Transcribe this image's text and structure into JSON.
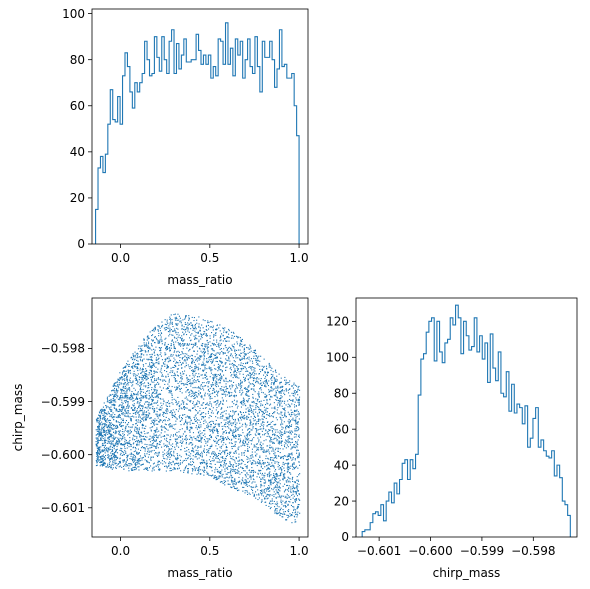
{
  "chart_data": [
    {
      "type": "histogram",
      "panel": "top-left",
      "xlabel": "mass_ratio",
      "ylabel": "",
      "xlim": [
        -0.16,
        1.05
      ],
      "ylim": [
        0,
        102
      ],
      "xticks": [
        {
          "value": 0.0,
          "label": "0.0"
        },
        {
          "value": 0.5,
          "label": "0.5"
        },
        {
          "value": 1.0,
          "label": "1.0"
        }
      ],
      "yticks": [
        {
          "value": 0,
          "label": "0"
        },
        {
          "value": 20,
          "label": "20"
        },
        {
          "value": 40,
          "label": "40"
        },
        {
          "value": 60,
          "label": "60"
        },
        {
          "value": 80,
          "label": "80"
        },
        {
          "value": 100,
          "label": "100"
        }
      ],
      "bin_range": [
        -0.14,
        1.0
      ],
      "counts": [
        15,
        33,
        38,
        31,
        39,
        52,
        67,
        54,
        53,
        64,
        52,
        73,
        83,
        77,
        66,
        59,
        70,
        66,
        70,
        74,
        88,
        80,
        73,
        74,
        90,
        81,
        75,
        90,
        80,
        74,
        88,
        93,
        74,
        87,
        76,
        82,
        89,
        79,
        79,
        80,
        80,
        91,
        84,
        78,
        82,
        78,
        82,
        72,
        77,
        73,
        89,
        88,
        78,
        96,
        78,
        85,
        73,
        89,
        82,
        88,
        72,
        80,
        89,
        77,
        74,
        90,
        77,
        66,
        88,
        81,
        81,
        88,
        80,
        68,
        76,
        93,
        77,
        78,
        72,
        72,
        74,
        60,
        47
      ],
      "color": "#1f77b4"
    },
    {
      "type": "scatter",
      "panel": "bottom-left",
      "xlabel": "mass_ratio",
      "ylabel": "chirp_mass",
      "xlim": [
        -0.16,
        1.05
      ],
      "ylim": [
        -0.60155,
        -0.59705
      ],
      "xticks": [
        {
          "value": 0.0,
          "label": "0.0"
        },
        {
          "value": 0.5,
          "label": "0.5"
        },
        {
          "value": 1.0,
          "label": "1.0"
        }
      ],
      "yticks": [
        {
          "value": -0.598,
          "label": "−0.598"
        },
        {
          "value": -0.599,
          "label": "−0.599"
        },
        {
          "value": -0.6,
          "label": "−0.600"
        },
        {
          "value": -0.601,
          "label": "−0.601"
        }
      ],
      "point_count": 6000,
      "region": {
        "x_range": [
          -0.14,
          1.0
        ],
        "upper_edge": [
          [
            -0.14,
            -0.5993
          ],
          [
            0.0,
            -0.5984
          ],
          [
            0.15,
            -0.5977
          ],
          [
            0.3,
            -0.5973
          ],
          [
            0.45,
            -0.5974
          ],
          [
            0.6,
            -0.5976
          ],
          [
            0.75,
            -0.598
          ],
          [
            0.9,
            -0.5985
          ],
          [
            1.0,
            -0.5987
          ]
        ],
        "lower_edge": [
          [
            -0.14,
            -0.6002
          ],
          [
            0.0,
            -0.6003
          ],
          [
            0.3,
            -0.6003
          ],
          [
            0.5,
            -0.6004
          ],
          [
            0.6,
            -0.6006
          ],
          [
            0.75,
            -0.6008
          ],
          [
            0.9,
            -0.6012
          ],
          [
            0.98,
            -0.6013
          ],
          [
            1.0,
            -0.6011
          ]
        ]
      },
      "color": "#1f77b4"
    },
    {
      "type": "histogram",
      "panel": "bottom-right",
      "xlabel": "chirp_mass",
      "ylabel": "",
      "xlim": [
        -0.60145,
        -0.59715
      ],
      "ylim": [
        0,
        133
      ],
      "xticks": [
        {
          "value": -0.601,
          "label": "−0.601"
        },
        {
          "value": -0.6,
          "label": "−0.600"
        },
        {
          "value": -0.599,
          "label": "−0.599"
        },
        {
          "value": -0.598,
          "label": "−0.598"
        }
      ],
      "yticks": [
        {
          "value": 0,
          "label": "0"
        },
        {
          "value": 20,
          "label": "20"
        },
        {
          "value": 40,
          "label": "40"
        },
        {
          "value": 60,
          "label": "60"
        },
        {
          "value": 80,
          "label": "80"
        },
        {
          "value": 100,
          "label": "100"
        },
        {
          "value": 120,
          "label": "120"
        }
      ],
      "bin_range": [
        -0.60133,
        -0.59728
      ],
      "counts": [
        3,
        4,
        4,
        8,
        13,
        14,
        12,
        18,
        9,
        20,
        25,
        19,
        30,
        24,
        32,
        41,
        43,
        32,
        43,
        38,
        46,
        79,
        99,
        102,
        114,
        120,
        122,
        98,
        120,
        103,
        97,
        108,
        110,
        122,
        118,
        129,
        122,
        102,
        120,
        112,
        104,
        106,
        122,
        103,
        112,
        99,
        108,
        86,
        113,
        94,
        87,
        103,
        80,
        78,
        92,
        70,
        85,
        69,
        74,
        72,
        63,
        73,
        50,
        55,
        66,
        72,
        50,
        54,
        48,
        45,
        44,
        48,
        34,
        40,
        33,
        20,
        18,
        12
      ],
      "color": "#1f77b4"
    }
  ]
}
